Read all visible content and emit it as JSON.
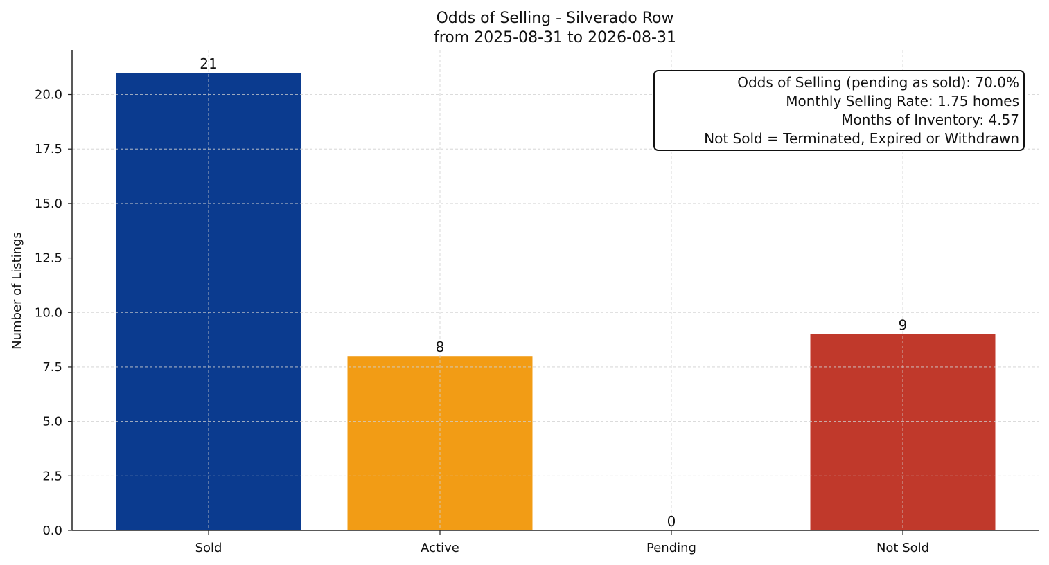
{
  "chart_data": {
    "type": "bar",
    "title": "Odds of Selling - Silverado Row",
    "subtitle": "from 2025-08-31 to 2026-08-31",
    "xlabel": "",
    "ylabel": "Number of Listings",
    "categories": [
      "Sold",
      "Active",
      "Pending",
      "Not Sold"
    ],
    "values": [
      21,
      8,
      0,
      9
    ],
    "data_labels": [
      "21",
      "8",
      "0",
      "9"
    ],
    "colors": [
      "#0b3b8f",
      "#f29c15",
      "#2e7d32",
      "#c0392b"
    ],
    "ylim": [
      0,
      22.05
    ],
    "yticks": [
      0.0,
      2.5,
      5.0,
      7.5,
      10.0,
      12.5,
      15.0,
      17.5,
      20.0
    ],
    "ytick_labels": [
      "0.0",
      "2.5",
      "5.0",
      "7.5",
      "10.0",
      "12.5",
      "15.0",
      "17.5",
      "20.0"
    ],
    "grid": true,
    "annotation": {
      "placement": "top-right",
      "lines": [
        "Odds of Selling (pending as sold): 70.0%",
        "Monthly Selling Rate: 1.75 homes",
        "Months of Inventory: 4.57",
        "Not Sold = Terminated, Expired or Withdrawn"
      ]
    }
  }
}
